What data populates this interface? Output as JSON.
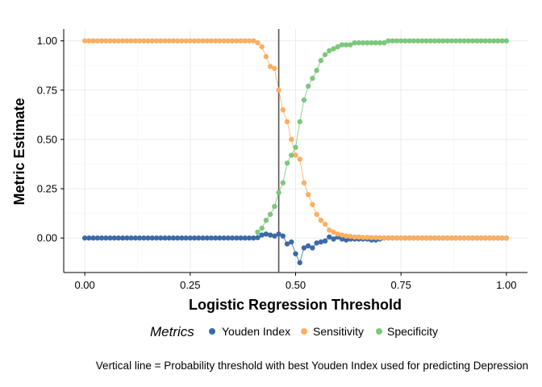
{
  "chart_data": {
    "type": "line",
    "xlabel": "Logistic Regression Threshold",
    "ylabel": "Metric Estimate",
    "xlim": [
      -0.05,
      1.05
    ],
    "ylim": [
      -0.175,
      1.06
    ],
    "xticks": [
      0.0,
      0.25,
      0.5,
      0.75,
      1.0
    ],
    "xtick_labels": [
      "0.00",
      "0.25",
      "0.50",
      "0.75",
      "1.00"
    ],
    "yticks": [
      0.0,
      0.25,
      0.5,
      0.75,
      1.0
    ],
    "ytick_labels": [
      "0.00",
      "0.25",
      "0.50",
      "0.75",
      "1.00"
    ],
    "grid": true,
    "legend": {
      "title": "Metrics",
      "position": "bottom"
    },
    "vline": {
      "x": 0.46,
      "color": "#555555"
    },
    "caption": "Vertical line = Probability threshold with best Youden Index used for predicting Depression",
    "x": [
      0.0,
      0.01,
      0.02,
      0.03,
      0.04,
      0.05,
      0.06,
      0.07,
      0.08,
      0.09,
      0.1,
      0.11,
      0.12,
      0.13,
      0.14,
      0.15,
      0.16,
      0.17,
      0.18,
      0.19,
      0.2,
      0.21,
      0.22,
      0.23,
      0.24,
      0.25,
      0.26,
      0.27,
      0.28,
      0.29,
      0.3,
      0.31,
      0.32,
      0.33,
      0.34,
      0.35,
      0.36,
      0.37,
      0.38,
      0.39,
      0.4,
      0.41,
      0.42,
      0.43,
      0.44,
      0.45,
      0.46,
      0.47,
      0.48,
      0.49,
      0.5,
      0.51,
      0.52,
      0.53,
      0.54,
      0.55,
      0.56,
      0.57,
      0.58,
      0.59,
      0.6,
      0.61,
      0.62,
      0.63,
      0.64,
      0.65,
      0.66,
      0.67,
      0.68,
      0.69,
      0.7,
      0.71,
      0.72,
      0.73,
      0.74,
      0.75,
      0.76,
      0.77,
      0.78,
      0.79,
      0.8,
      0.81,
      0.82,
      0.83,
      0.84,
      0.85,
      0.86,
      0.87,
      0.88,
      0.89,
      0.9,
      0.91,
      0.92,
      0.93,
      0.94,
      0.95,
      0.96,
      0.97,
      0.98,
      0.99,
      1.0
    ],
    "series": [
      {
        "name": "Youden Index",
        "color": "#3a6aa8",
        "values": [
          0,
          0,
          0,
          0,
          0,
          0,
          0,
          0,
          0,
          0,
          0,
          0,
          0,
          0,
          0,
          0,
          0,
          0,
          0,
          0,
          0,
          0,
          0,
          0,
          0,
          0,
          0,
          0,
          0,
          0,
          0,
          0,
          0,
          0,
          0,
          0,
          0,
          0,
          0,
          0,
          0,
          0.002,
          0.015,
          0.02,
          0.015,
          0.01,
          0.02,
          0.01,
          -0.03,
          -0.02,
          -0.08,
          -0.125,
          -0.05,
          -0.04,
          -0.05,
          -0.025,
          -0.02,
          -0.015,
          0.005,
          -0.005,
          0.005,
          -0.005,
          -0.01,
          -0.005,
          -0.005,
          -0.005,
          -0.005,
          -0.005,
          -0.01,
          -0.01,
          -0.005,
          0,
          0,
          0,
          0,
          0,
          0,
          0,
          0,
          0,
          0,
          0,
          0,
          0,
          0,
          0,
          0,
          0,
          0,
          0,
          0,
          0,
          0,
          0,
          0,
          0,
          0,
          0,
          0,
          0,
          0
        ]
      },
      {
        "name": "Sensitivity",
        "color": "#fdae61",
        "values": [
          1,
          1,
          1,
          1,
          1,
          1,
          1,
          1,
          1,
          1,
          1,
          1,
          1,
          1,
          1,
          1,
          1,
          1,
          1,
          1,
          1,
          1,
          1,
          1,
          1,
          1,
          1,
          1,
          1,
          1,
          1,
          1,
          1,
          1,
          1,
          1,
          1,
          1,
          1,
          1,
          1,
          0.99,
          0.97,
          0.92,
          0.87,
          0.86,
          0.75,
          0.65,
          0.59,
          0.5,
          0.42,
          0.4,
          0.28,
          0.22,
          0.17,
          0.12,
          0.09,
          0.07,
          0.04,
          0.03,
          0.02,
          0.015,
          0.01,
          0.008,
          0.005,
          0.005,
          0.003,
          0.003,
          0.002,
          0.002,
          0.001,
          0.001,
          0,
          0,
          0,
          0,
          0,
          0,
          0,
          0,
          0,
          0,
          0,
          0,
          0,
          0,
          0,
          0,
          0,
          0,
          0,
          0,
          0,
          0,
          0,
          0,
          0,
          0,
          0,
          0,
          0
        ]
      },
      {
        "name": "Specificity",
        "color": "#7bc87c",
        "values": [
          null,
          null,
          null,
          null,
          null,
          null,
          null,
          null,
          null,
          null,
          null,
          null,
          null,
          null,
          null,
          null,
          null,
          null,
          null,
          null,
          null,
          null,
          null,
          null,
          null,
          null,
          null,
          null,
          null,
          null,
          null,
          null,
          null,
          null,
          null,
          null,
          null,
          null,
          null,
          null,
          null,
          0.03,
          0.05,
          0.09,
          0.12,
          0.16,
          0.23,
          0.28,
          0.38,
          0.42,
          0.46,
          0.59,
          0.7,
          0.77,
          0.81,
          0.85,
          0.9,
          0.93,
          0.95,
          0.96,
          0.97,
          0.98,
          0.98,
          0.98,
          0.99,
          0.99,
          0.99,
          0.99,
          0.99,
          0.99,
          0.99,
          0.99,
          1,
          1,
          1,
          1,
          1,
          1,
          1,
          1,
          1,
          1,
          1,
          1,
          1,
          1,
          1,
          1,
          1,
          1,
          1,
          1,
          1,
          1,
          1,
          1,
          1,
          1,
          1,
          1,
          1
        ]
      }
    ]
  }
}
